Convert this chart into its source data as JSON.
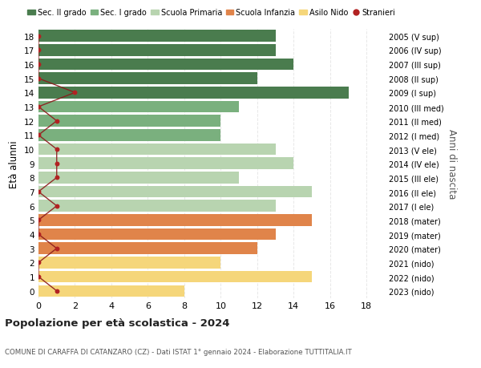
{
  "ages": [
    18,
    17,
    16,
    15,
    14,
    13,
    12,
    11,
    10,
    9,
    8,
    7,
    6,
    5,
    4,
    3,
    2,
    1,
    0
  ],
  "right_labels": [
    "2005 (V sup)",
    "2006 (IV sup)",
    "2007 (III sup)",
    "2008 (II sup)",
    "2009 (I sup)",
    "2010 (III med)",
    "2011 (II med)",
    "2012 (I med)",
    "2013 (V ele)",
    "2014 (IV ele)",
    "2015 (III ele)",
    "2016 (II ele)",
    "2017 (I ele)",
    "2018 (mater)",
    "2019 (mater)",
    "2020 (mater)",
    "2021 (nido)",
    "2022 (nido)",
    "2023 (nido)"
  ],
  "bar_values": [
    13,
    13,
    14,
    12,
    17,
    11,
    10,
    10,
    13,
    14,
    11,
    15,
    13,
    15,
    13,
    12,
    10,
    15,
    8
  ],
  "bar_colors": [
    "#4a7c4e",
    "#4a7c4e",
    "#4a7c4e",
    "#4a7c4e",
    "#4a7c4e",
    "#7ab07e",
    "#7ab07e",
    "#7ab07e",
    "#b8d4b0",
    "#b8d4b0",
    "#b8d4b0",
    "#b8d4b0",
    "#b8d4b0",
    "#e0844a",
    "#e0844a",
    "#e0844a",
    "#f5d67a",
    "#f5d67a",
    "#f5d67a"
  ],
  "stranieri_values": [
    0,
    0,
    0,
    0,
    2,
    0,
    1,
    0,
    1,
    1,
    1,
    0,
    1,
    0,
    0,
    1,
    0,
    0,
    1
  ],
  "legend_labels": [
    "Sec. II grado",
    "Sec. I grado",
    "Scuola Primaria",
    "Scuola Infanzia",
    "Asilo Nido",
    "Stranieri"
  ],
  "legend_colors": [
    "#4a7c4e",
    "#7ab07e",
    "#b8d4b0",
    "#e0844a",
    "#f5d67a",
    "#b22222"
  ],
  "ylabel": "Età alunni",
  "ylabel_right": "Anni di nascita",
  "title": "Popolazione per età scolastica - 2024",
  "subtitle": "COMUNE DI CARAFFA DI CATANZARO (CZ) - Dati ISTAT 1° gennaio 2024 - Elaborazione TUTTITALIA.IT",
  "xlim": [
    0,
    19
  ],
  "ylim": [
    -0.5,
    18.5
  ],
  "background_color": "#ffffff",
  "stranieri_color": "#b22222",
  "stranieri_line_color": "#8b1a1a",
  "bar_height": 0.82,
  "grid_color": "#e8e8e8"
}
